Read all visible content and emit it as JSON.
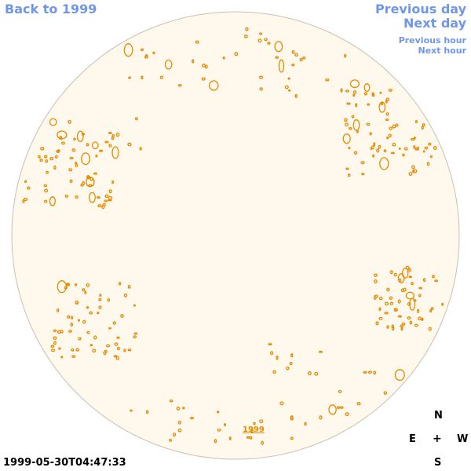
{
  "nav": {
    "back": "Back to 1999",
    "previous_day": "Previous day",
    "next_day": "Next day",
    "previous_hour": "Previous hour",
    "next_hour": "Next hour"
  },
  "year_link": "1999",
  "timestamp": "1999-05-30T04:47:33",
  "compass": {
    "north": "N",
    "south": "S",
    "east": "E",
    "west": "W",
    "center": "+"
  },
  "colors": {
    "disk_fill": "#fff8ec",
    "disk_stroke": "#c9c0b0",
    "marks": "#e68a00",
    "links": "#6f97e8"
  }
}
